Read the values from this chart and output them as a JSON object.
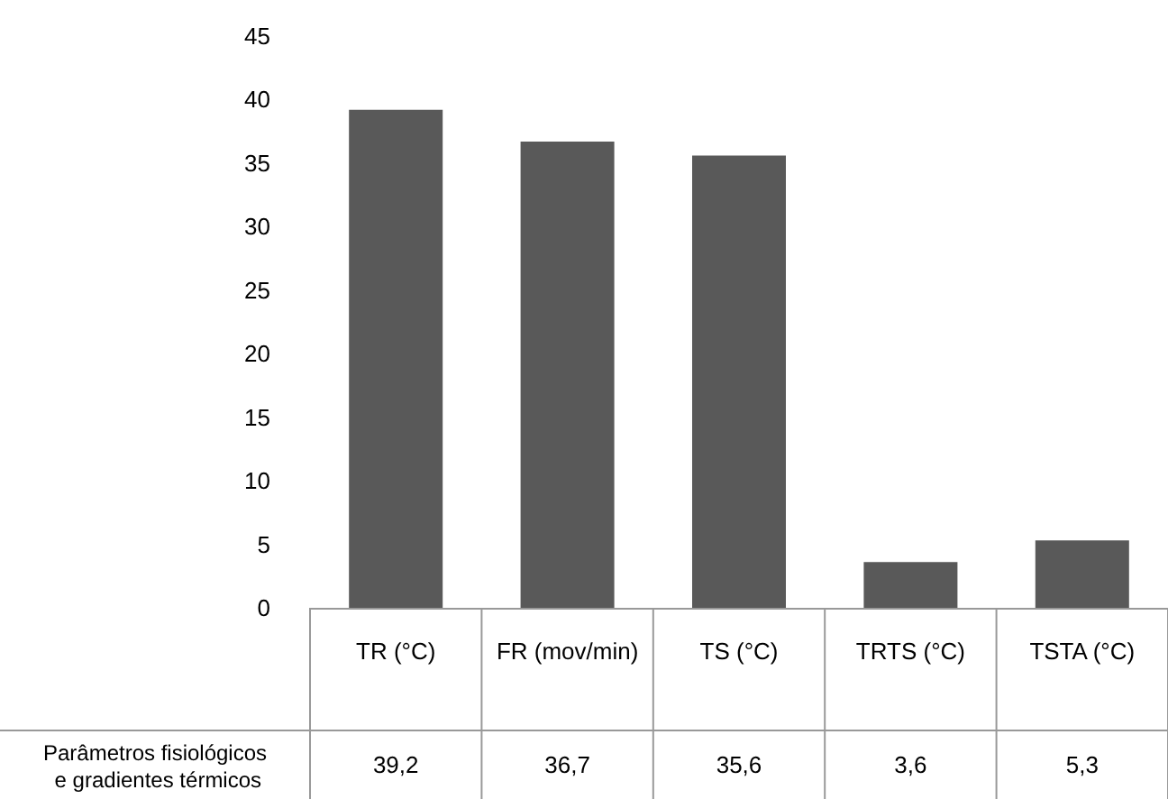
{
  "chart_data": {
    "type": "bar",
    "categories": [
      "TR (°C)",
      "FR (mov/min)",
      "TS (°C)",
      "TRTS (°C)",
      "TSTA (°C)"
    ],
    "series": [
      {
        "name": "Parâmetros fisiológicos e gradientes térmicos",
        "color": "#595959",
        "values": [
          39.2,
          36.7,
          35.6,
          3.6,
          5.3
        ],
        "value_labels": [
          "39,2",
          "36,7",
          "35,6",
          "3,6",
          "5,3"
        ]
      }
    ],
    "ylim": [
      0,
      45
    ],
    "yticks": [
      0,
      5,
      10,
      15,
      20,
      25,
      30,
      35,
      40,
      45
    ],
    "grid": false,
    "legend": false
  }
}
